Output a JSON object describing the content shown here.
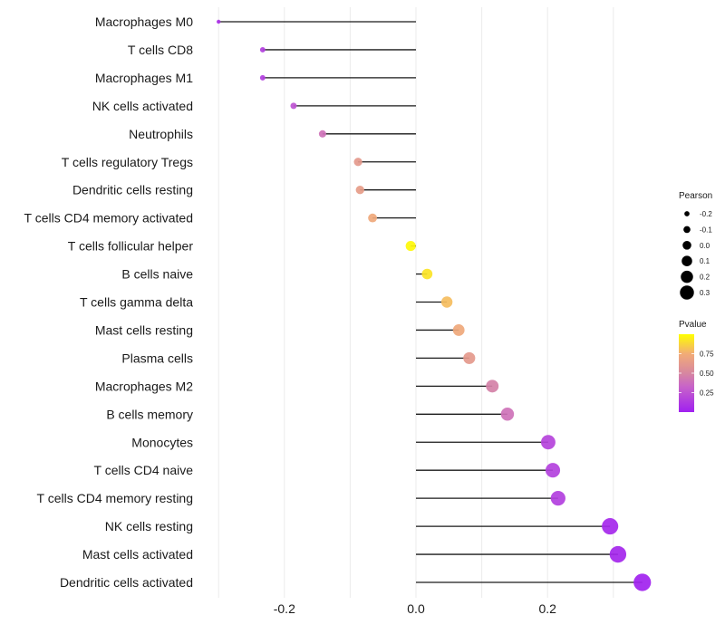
{
  "chart_data": {
    "type": "lollipop",
    "title": "",
    "xlabel": "",
    "ylabel": "",
    "xlim": [
      -0.3,
      0.345
    ],
    "xticks": [
      -0.2,
      0.0,
      0.2
    ],
    "xtick_labels": [
      "-0.2",
      "0.0",
      "0.2"
    ],
    "grid": true,
    "categories": [
      "Macrophages M0",
      "T cells CD8",
      "Macrophages M1",
      "NK cells activated",
      "Neutrophils",
      "T cells regulatory  Tregs",
      "Dendritic cells resting",
      "T cells CD4 memory activated",
      "T cells follicular helper",
      "B cells naive",
      "T cells gamma delta",
      "Mast cells resting",
      "Plasma cells",
      "Macrophages M2",
      "B cells memory",
      "Monocytes",
      "T cells CD4 naive",
      "T cells CD4 memory resting",
      "NK cells resting",
      "Mast cells activated",
      "Dendritic cells activated"
    ],
    "series": [
      {
        "name": "Pearson",
        "values": [
          -0.3,
          -0.233,
          -0.233,
          -0.186,
          -0.142,
          -0.088,
          -0.085,
          -0.066,
          -0.008,
          0.017,
          0.047,
          0.065,
          0.081,
          0.116,
          0.139,
          0.201,
          0.208,
          0.216,
          0.295,
          0.307,
          0.344
        ]
      },
      {
        "name": "Pvalue",
        "values": [
          0.08,
          0.15,
          0.15,
          0.25,
          0.4,
          0.62,
          0.64,
          0.72,
          0.98,
          0.92,
          0.8,
          0.72,
          0.62,
          0.47,
          0.4,
          0.17,
          0.16,
          0.15,
          0.04,
          0.03,
          0.01
        ]
      }
    ],
    "legend": {
      "position": "right",
      "size_legend": {
        "title": "Pearson",
        "labels": [
          "-0.2",
          "-0.1",
          "0.0",
          "0.1",
          "0.2",
          "0.3"
        ],
        "values": [
          -0.2,
          -0.1,
          0.0,
          0.1,
          0.2,
          0.3
        ]
      },
      "color_legend": {
        "title": "Pvalue",
        "labels": [
          "0.75",
          "0.50",
          "0.25"
        ],
        "values": [
          0.75,
          0.5,
          0.25
        ],
        "range": [
          0.0,
          1.0
        ],
        "colors": [
          "#A020F0",
          "#D080B0",
          "#F0A878",
          "#FFFF00"
        ]
      }
    }
  }
}
